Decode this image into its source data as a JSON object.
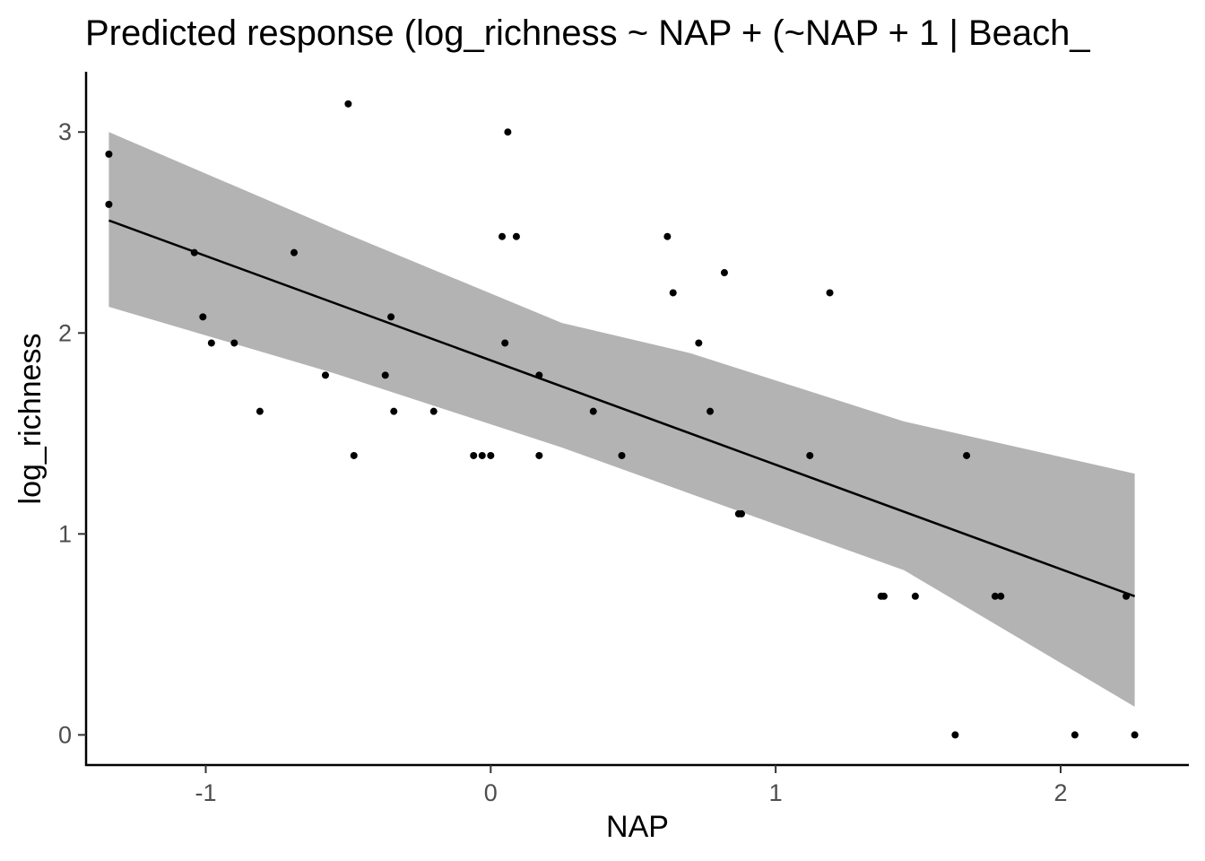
{
  "chart_data": {
    "type": "scatter",
    "title": "Predicted response (log_richness ~ NAP + (~NAP + 1 | Beach_",
    "xlabel": "NAP",
    "ylabel": "log_richness",
    "xlim": [
      -1.42,
      2.45
    ],
    "ylim": [
      -0.15,
      3.3
    ],
    "x_ticks": [
      -1,
      0,
      1,
      2
    ],
    "y_ticks": [
      0,
      1,
      2,
      3
    ],
    "grid": false,
    "colors": {
      "points": "#000000",
      "line": "#000000",
      "ribbon": "#b3b3b3",
      "axis": "#000000",
      "tick_labels": "#4d4d4d"
    },
    "fit_line": {
      "x": [
        -1.34,
        2.26
      ],
      "y": [
        2.56,
        0.69
      ]
    },
    "confidence_band": {
      "x": [
        -1.34,
        -0.55,
        0.25,
        0.7,
        1.45,
        2.26
      ],
      "upper": [
        3.0,
        2.52,
        2.05,
        1.9,
        1.56,
        1.3
      ],
      "lower": [
        2.13,
        1.8,
        1.43,
        1.2,
        0.82,
        0.14
      ]
    },
    "points": [
      {
        "x": -1.34,
        "y": 2.89
      },
      {
        "x": -1.34,
        "y": 2.64
      },
      {
        "x": -1.04,
        "y": 2.4
      },
      {
        "x": -1.01,
        "y": 2.08
      },
      {
        "x": -0.98,
        "y": 1.95
      },
      {
        "x": -0.9,
        "y": 1.95
      },
      {
        "x": -0.81,
        "y": 1.61
      },
      {
        "x": -0.69,
        "y": 2.4
      },
      {
        "x": -0.58,
        "y": 1.79
      },
      {
        "x": -0.5,
        "y": 3.14
      },
      {
        "x": -0.48,
        "y": 1.39
      },
      {
        "x": -0.37,
        "y": 1.79
      },
      {
        "x": -0.35,
        "y": 2.08
      },
      {
        "x": -0.34,
        "y": 1.61
      },
      {
        "x": -0.2,
        "y": 1.61
      },
      {
        "x": -0.06,
        "y": 1.39
      },
      {
        "x": -0.03,
        "y": 1.39
      },
      {
        "x": 0.0,
        "y": 1.39
      },
      {
        "x": 0.04,
        "y": 2.48
      },
      {
        "x": 0.05,
        "y": 1.95
      },
      {
        "x": 0.06,
        "y": 3.0
      },
      {
        "x": 0.09,
        "y": 2.48
      },
      {
        "x": 0.17,
        "y": 1.79
      },
      {
        "x": 0.17,
        "y": 1.39
      },
      {
        "x": 0.36,
        "y": 1.61
      },
      {
        "x": 0.46,
        "y": 1.39
      },
      {
        "x": 0.62,
        "y": 2.48
      },
      {
        "x": 0.64,
        "y": 2.2
      },
      {
        "x": 0.73,
        "y": 1.95
      },
      {
        "x": 0.77,
        "y": 1.61
      },
      {
        "x": 0.82,
        "y": 2.3
      },
      {
        "x": 0.87,
        "y": 1.1
      },
      {
        "x": 0.88,
        "y": 1.1
      },
      {
        "x": 1.12,
        "y": 1.39
      },
      {
        "x": 1.19,
        "y": 2.2
      },
      {
        "x": 1.37,
        "y": 0.69
      },
      {
        "x": 1.38,
        "y": 0.69
      },
      {
        "x": 1.49,
        "y": 0.69
      },
      {
        "x": 1.63,
        "y": 0.0
      },
      {
        "x": 1.67,
        "y": 1.39
      },
      {
        "x": 1.77,
        "y": 0.69
      },
      {
        "x": 1.79,
        "y": 0.69
      },
      {
        "x": 2.05,
        "y": 0.0
      },
      {
        "x": 2.23,
        "y": 0.69
      },
      {
        "x": 2.26,
        "y": 0.0
      }
    ]
  }
}
